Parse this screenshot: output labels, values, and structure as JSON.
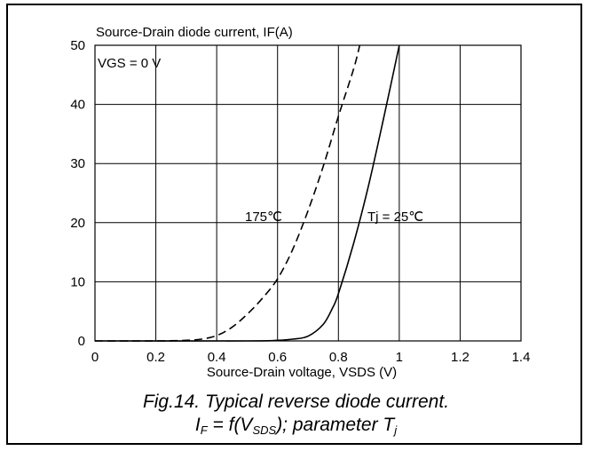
{
  "chart_data": {
    "type": "line",
    "ylabel": "Source-Drain diode current, IF(A)",
    "xlabel": "Source-Drain voltage, VSDS (V)",
    "xlim": [
      0,
      1.4
    ],
    "ylim": [
      0,
      50
    ],
    "x_ticks": [
      "0",
      "0.2",
      "0.4",
      "0.6",
      "0.8",
      "1",
      "1.2",
      "1.4"
    ],
    "y_ticks": [
      "0",
      "10",
      "20",
      "30",
      "40",
      "50"
    ],
    "grid": true,
    "annotation": "VGS = 0 V",
    "series": [
      {
        "name": "175℃",
        "style": "dashed",
        "x": [
          0.0,
          0.2,
          0.3,
          0.35,
          0.4,
          0.45,
          0.5,
          0.55,
          0.6,
          0.65,
          0.7,
          0.75,
          0.8,
          0.85,
          0.87
        ],
        "y": [
          0,
          0,
          0.1,
          0.3,
          0.9,
          2.3,
          4.5,
          7.2,
          10.5,
          15.5,
          22,
          29.5,
          38,
          46,
          50
        ]
      },
      {
        "name": "Tj = 25℃",
        "style": "solid",
        "x": [
          0.0,
          0.5,
          0.6,
          0.65,
          0.7,
          0.75,
          0.78,
          0.8,
          0.85,
          0.9,
          0.95,
          1.0
        ],
        "y": [
          0,
          0,
          0.1,
          0.3,
          0.8,
          2.8,
          5.5,
          8,
          16.5,
          26.5,
          38,
          50
        ]
      }
    ]
  },
  "caption": {
    "line1": "Fig.14.   Typical reverse diode current.",
    "line2_parts": [
      "I",
      "F",
      " = f(V",
      "SDS",
      "); parameter T",
      "j"
    ]
  }
}
